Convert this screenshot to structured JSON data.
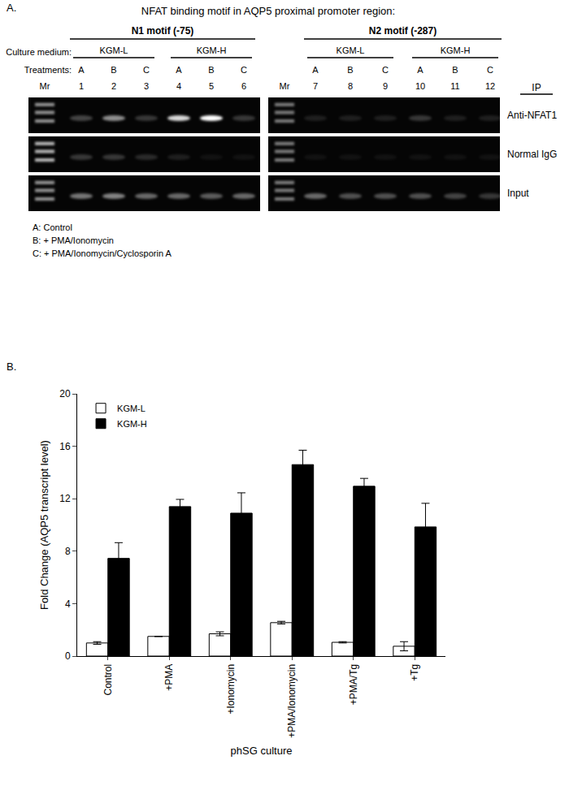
{
  "panel_a": {
    "label": "A.",
    "title": "NFAT binding motif in AQP5 proximal promoter region:",
    "culture_label": "Culture medium:",
    "treatment_label": "Treatments:",
    "ip_label": "IP",
    "panels": [
      {
        "motif": "N1 motif (-75)",
        "marker_label": "Mr",
        "media": [
          "KGM-L",
          "KGM-H"
        ],
        "treatments": [
          "A",
          "B",
          "C",
          "A",
          "B",
          "C"
        ],
        "lanes": [
          1,
          2,
          3,
          4,
          5,
          6
        ]
      },
      {
        "motif": "N2 motif (-287)",
        "marker_label": "Mr",
        "media": [
          "KGM-L",
          "KGM-H"
        ],
        "treatments": [
          "A",
          "B",
          "C",
          "A",
          "B",
          "C"
        ],
        "lanes": [
          7,
          8,
          9,
          10,
          11,
          12
        ]
      }
    ],
    "rows": [
      {
        "label": "Anti-NFAT1",
        "marker": [
          0.6,
          0.5
        ],
        "bands": [
          [
            0.25,
            0.55,
            0.2,
            0.85,
            1.0,
            0.2
          ],
          [
            0.1,
            0.1,
            0.1,
            0.2,
            0.1,
            0.1
          ]
        ]
      },
      {
        "label": "Normal IgG",
        "marker": [
          0.75,
          0.5
        ],
        "bands": [
          [
            0.2,
            0.2,
            0.15,
            0.1,
            0.05,
            0.05
          ],
          [
            0.05,
            0.05,
            0.05,
            0.05,
            0.05,
            0.05
          ]
        ]
      },
      {
        "label": "Input",
        "marker": [
          0.6,
          0.5
        ],
        "bands": [
          [
            0.45,
            0.5,
            0.4,
            0.4,
            0.35,
            0.4
          ],
          [
            0.4,
            0.3,
            0.3,
            0.3,
            0.25,
            0.2
          ]
        ]
      }
    ],
    "key": [
      "A: Control",
      "B: + PMA/Ionomycin",
      "C: + PMA/Ionomycin/Cyclosporin A"
    ]
  },
  "panel_b_label": "B.",
  "chart_data": {
    "type": "bar",
    "categories": [
      "Control",
      "+PMA",
      "+Ionomycin",
      "+PMA/Ionomycin",
      "+PMA/Tg",
      "+Tg"
    ],
    "series": [
      {
        "name": "KGM-L",
        "color": "#ffffff",
        "values": [
          1.0,
          1.5,
          1.7,
          2.55,
          1.05,
          0.75
        ],
        "error": [
          0.1,
          0.0,
          0.15,
          0.1,
          0.05,
          0.35
        ]
      },
      {
        "name": "KGM-H",
        "color": "#000000",
        "values": [
          7.45,
          11.4,
          10.9,
          14.6,
          12.95,
          9.85
        ],
        "error": [
          1.2,
          0.55,
          1.55,
          1.1,
          0.6,
          1.8
        ]
      }
    ],
    "y_label": "Fold Change (AQP5 transcript level)",
    "x_label": "phSG culture",
    "ylim": [
      0,
      20
    ],
    "yticks": [
      0,
      4,
      8,
      12,
      16,
      20
    ],
    "legend": "upper left",
    "grid": false
  }
}
